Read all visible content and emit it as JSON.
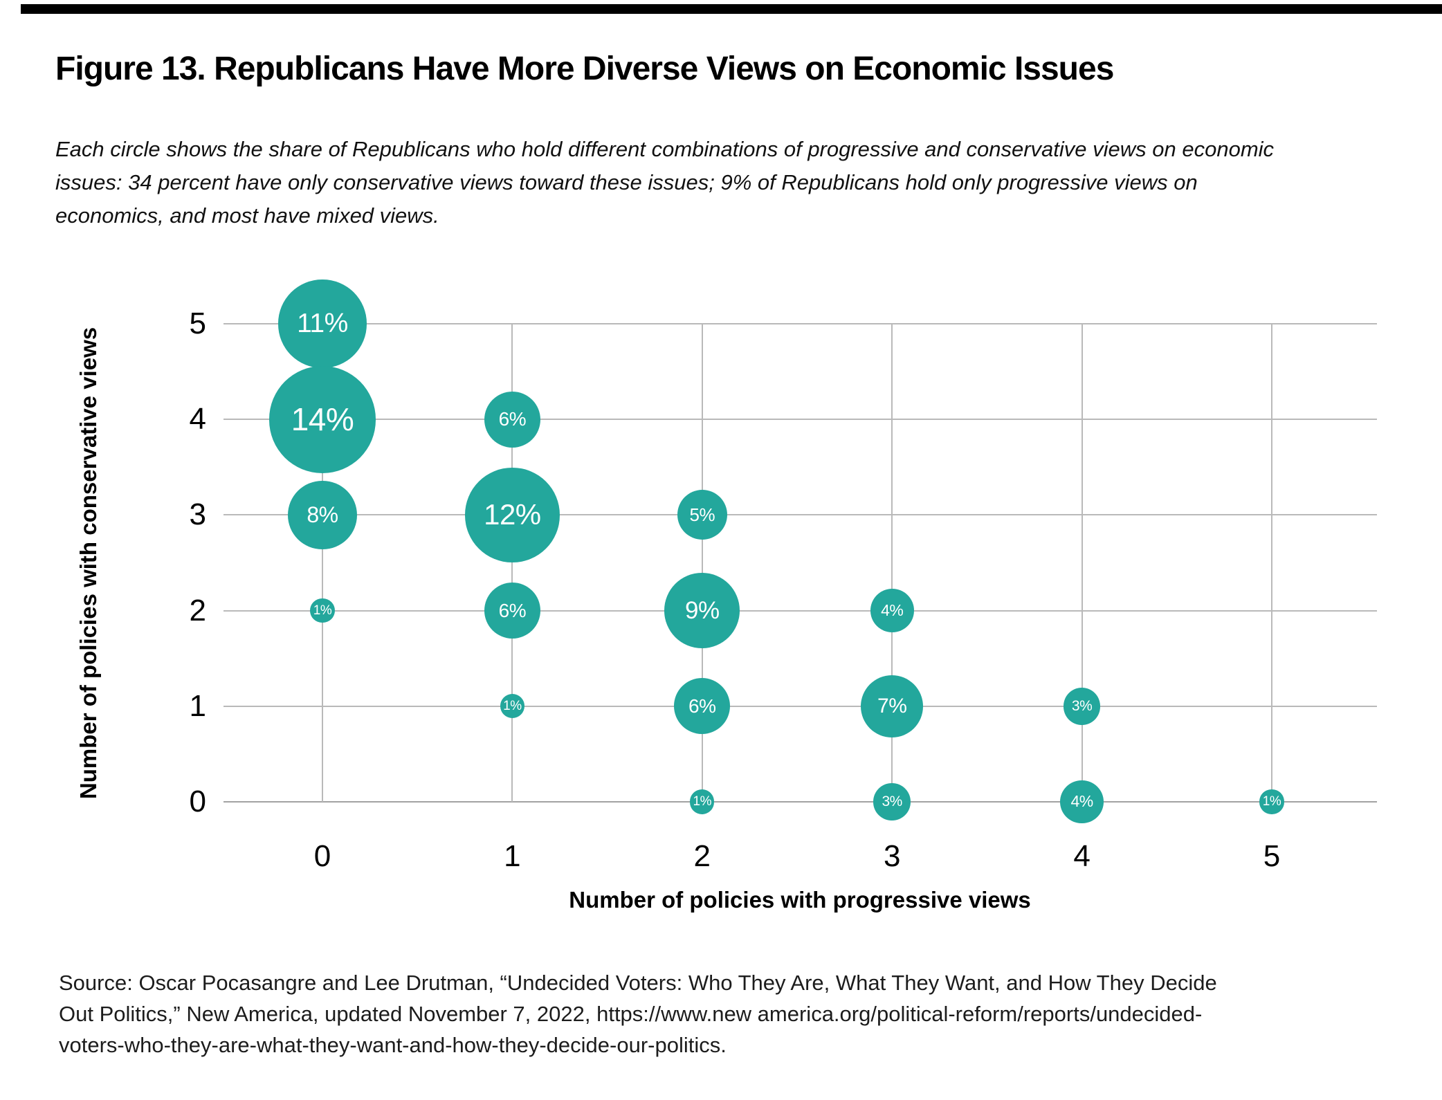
{
  "header": {
    "title": "Figure 13. Republicans Have More Diverse Views on Economic Issues",
    "subtitle_lines": [
      "Each circle shows the share of Republicans who hold different combinations of progressive and conservative views on economic",
      "issues: 34 percent have only conservative views toward these issues; 9% of Republicans hold only progressive views on",
      "economics, and most have mixed views."
    ]
  },
  "chart_data": {
    "type": "scatter",
    "subtype": "bubble",
    "title": "",
    "xlabel": "Number of policies with progressive views",
    "ylabel": "Number of policies with conservative views",
    "x_ticks": [
      "0",
      "1",
      "2",
      "3",
      "4",
      "5"
    ],
    "y_ticks": [
      "5",
      "4",
      "3",
      "2",
      "1",
      "0"
    ],
    "xlim": [
      -0.5,
      5.5
    ],
    "ylim": [
      -0.5,
      5.5
    ],
    "grid": true,
    "legend": false,
    "value_unit": "% of Republicans",
    "points": [
      {
        "x": 0,
        "y": 5,
        "value": 11,
        "label": "11%"
      },
      {
        "x": 0,
        "y": 4,
        "value": 14,
        "label": "14%"
      },
      {
        "x": 0,
        "y": 3,
        "value": 8,
        "label": "8%"
      },
      {
        "x": 0,
        "y": 2,
        "value": 1,
        "label": "1%"
      },
      {
        "x": 1,
        "y": 4,
        "value": 6,
        "label": "6%"
      },
      {
        "x": 1,
        "y": 3,
        "value": 12,
        "label": "12%"
      },
      {
        "x": 1,
        "y": 2,
        "value": 6,
        "label": "6%"
      },
      {
        "x": 1,
        "y": 1,
        "value": 1,
        "label": "1%"
      },
      {
        "x": 2,
        "y": 3,
        "value": 5,
        "label": "5%"
      },
      {
        "x": 2,
        "y": 2,
        "value": 9,
        "label": "9%"
      },
      {
        "x": 2,
        "y": 1,
        "value": 6,
        "label": "6%"
      },
      {
        "x": 2,
        "y": 0,
        "value": 1,
        "label": "1%"
      },
      {
        "x": 3,
        "y": 2,
        "value": 4,
        "label": "4%"
      },
      {
        "x": 3,
        "y": 1,
        "value": 7,
        "label": "7%"
      },
      {
        "x": 3,
        "y": 0,
        "value": 3,
        "label": "3%"
      },
      {
        "x": 4,
        "y": 1,
        "value": 3,
        "label": "3%"
      },
      {
        "x": 4,
        "y": 0,
        "value": 4,
        "label": "4%"
      },
      {
        "x": 5,
        "y": 0,
        "value": 1,
        "label": "1%"
      }
    ],
    "colors": {
      "bubble": "#23a79c",
      "bubble_label": "#ffffff",
      "gridline": "#b9b9b9",
      "axis_line": "#a2a2a2",
      "text": "#000000"
    }
  },
  "source": {
    "lines": [
      "Source: Oscar Pocasangre and Lee Drutman, “Undecided Voters: Who They Are, What They Want, and How They Decide",
      "Out Politics,” New America, updated November 7, 2022, https://www.new america.org/political-reform/reports/undecided-",
      "voters-who-they-are-what-they-want-and-how-they-decide-our-politics."
    ]
  }
}
